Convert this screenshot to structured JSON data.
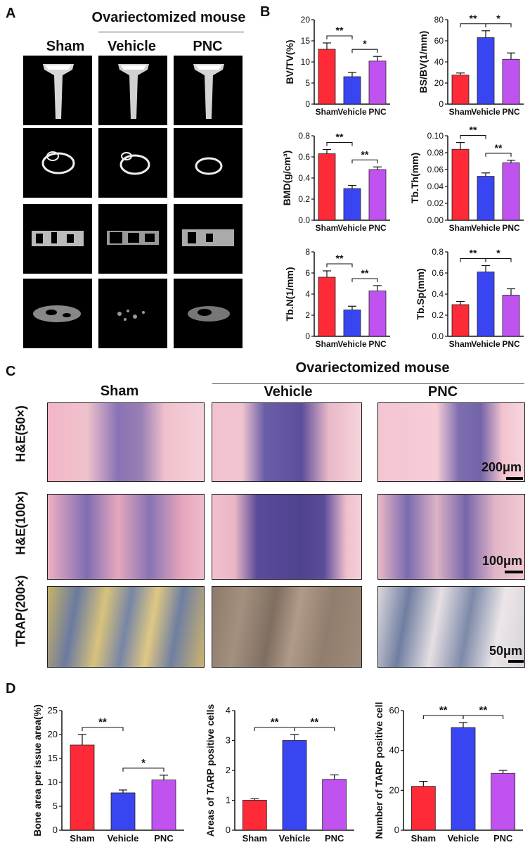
{
  "panels": {
    "a": "A",
    "b": "B",
    "c": "C",
    "d": "D"
  },
  "panel_a": {
    "group_header": "Ovariectomized mouse",
    "columns": [
      "Sham",
      "Vehicle",
      "PNC"
    ]
  },
  "panel_c": {
    "group_header": "Ovariectomized  mouse",
    "columns": [
      "Sham",
      "Vehicle",
      "PNC"
    ],
    "rows": [
      "H&E(50×)",
      "H&E(100×)",
      "TRAP(200×)"
    ],
    "scale_bars": [
      "200μm",
      "100μm",
      "50μm"
    ]
  },
  "colors": {
    "sham": "#ff2a38",
    "vehicle": "#3a45f2",
    "pnc": "#c053f0"
  },
  "chart_data": [
    {
      "type": "bar",
      "categories": [
        "Sham",
        "Vehicle",
        "PNC"
      ],
      "values": [
        13,
        6.5,
        10.2
      ],
      "errors": [
        1.5,
        1.0,
        1.1
      ],
      "ylabel": "BV/TV(%)",
      "ylim": [
        0,
        20
      ],
      "yticks": [
        0,
        5,
        10,
        15,
        20
      ],
      "sig": [
        {
          "from": 0,
          "to": 1,
          "label": "**"
        },
        {
          "from": 1,
          "to": 2,
          "label": "*"
        }
      ]
    },
    {
      "type": "bar",
      "categories": [
        "Sham",
        "Vehicle",
        "PNC"
      ],
      "values": [
        27.5,
        63,
        42.5
      ],
      "errors": [
        2,
        6.5,
        6
      ],
      "ylabel": "BS/BV(1/mm)",
      "ylim": [
        0,
        80
      ],
      "yticks": [
        0,
        20,
        40,
        60,
        80
      ],
      "sig": [
        {
          "from": 0,
          "to": 1,
          "label": "**"
        },
        {
          "from": 1,
          "to": 2,
          "label": "*"
        }
      ]
    },
    {
      "type": "bar",
      "categories": [
        "Sham",
        "Vehicle",
        "PNC"
      ],
      "values": [
        0.63,
        0.3,
        0.48
      ],
      "errors": [
        0.04,
        0.03,
        0.025
      ],
      "ylabel": "BMD(g/cm³)",
      "ylim": [
        0,
        0.8
      ],
      "yticks": [
        0.0,
        0.2,
        0.4,
        0.6,
        0.8
      ],
      "decimals": 1,
      "sig": [
        {
          "from": 0,
          "to": 1,
          "label": "**"
        },
        {
          "from": 1,
          "to": 2,
          "label": "**"
        }
      ]
    },
    {
      "type": "bar",
      "categories": [
        "Sham",
        "Vehicle",
        "PNC"
      ],
      "values": [
        0.084,
        0.052,
        0.068
      ],
      "errors": [
        0.008,
        0.004,
        0.003
      ],
      "ylabel": "Tb.Th(mm)",
      "ylim": [
        0,
        0.1
      ],
      "yticks": [
        0.0,
        0.02,
        0.04,
        0.06,
        0.08,
        0.1
      ],
      "decimals": 2,
      "sig": [
        {
          "from": 0,
          "to": 1,
          "label": "**"
        },
        {
          "from": 1,
          "to": 2,
          "label": "**"
        }
      ]
    },
    {
      "type": "bar",
      "categories": [
        "Sham",
        "Vehicle",
        "PNC"
      ],
      "values": [
        5.6,
        2.5,
        4.3
      ],
      "errors": [
        0.6,
        0.35,
        0.5
      ],
      "ylabel": "Tb.N(1/mm)",
      "ylim": [
        0,
        8
      ],
      "yticks": [
        0,
        2,
        4,
        6,
        8
      ],
      "sig": [
        {
          "from": 0,
          "to": 1,
          "label": "**"
        },
        {
          "from": 1,
          "to": 2,
          "label": "**"
        }
      ]
    },
    {
      "type": "bar",
      "categories": [
        "Sham",
        "Vehicle",
        "PNC"
      ],
      "values": [
        0.3,
        0.61,
        0.39
      ],
      "errors": [
        0.03,
        0.06,
        0.06
      ],
      "ylabel": "Tb.Sp(mm)",
      "ylim": [
        0,
        0.8
      ],
      "yticks": [
        0.0,
        0.2,
        0.4,
        0.6,
        0.8
      ],
      "decimals": 1,
      "sig": [
        {
          "from": 0,
          "to": 1,
          "label": "**"
        },
        {
          "from": 1,
          "to": 2,
          "label": "*"
        }
      ]
    },
    {
      "type": "bar",
      "categories": [
        "Sham",
        "Vehicle",
        "PNC"
      ],
      "values": [
        17.8,
        7.8,
        10.5
      ],
      "errors": [
        2.2,
        0.6,
        1.0
      ],
      "ylabel": "Bone area per issue area(%)",
      "ylim": [
        0,
        25
      ],
      "yticks": [
        0,
        5,
        10,
        15,
        20,
        25
      ],
      "sig": [
        {
          "from": 0,
          "to": 1,
          "label": "**"
        },
        {
          "from": 1,
          "to": 2,
          "label": "*"
        }
      ]
    },
    {
      "type": "bar",
      "categories": [
        "Sham",
        "Vehicle",
        "PNC"
      ],
      "values": [
        1.0,
        3.0,
        1.7
      ],
      "errors": [
        0.05,
        0.2,
        0.15
      ],
      "ylabel": "Areas of TARP positive cells",
      "ylim": [
        0,
        4
      ],
      "yticks": [
        0,
        1,
        2,
        3,
        4
      ],
      "sig": [
        {
          "from": 0,
          "to": 1,
          "label": "**"
        },
        {
          "from": 1,
          "to": 2,
          "label": "**"
        }
      ]
    },
    {
      "type": "bar",
      "categories": [
        "Sham",
        "Vehicle",
        "PNC"
      ],
      "values": [
        22,
        51.5,
        28.5
      ],
      "errors": [
        2.5,
        2.5,
        1.5
      ],
      "ylabel": "Number of TARP positive cell",
      "ylim": [
        0,
        60
      ],
      "yticks": [
        0,
        20,
        40,
        60
      ],
      "sig": [
        {
          "from": 0,
          "to": 1,
          "label": "**"
        },
        {
          "from": 1,
          "to": 2,
          "label": "**"
        }
      ]
    }
  ]
}
